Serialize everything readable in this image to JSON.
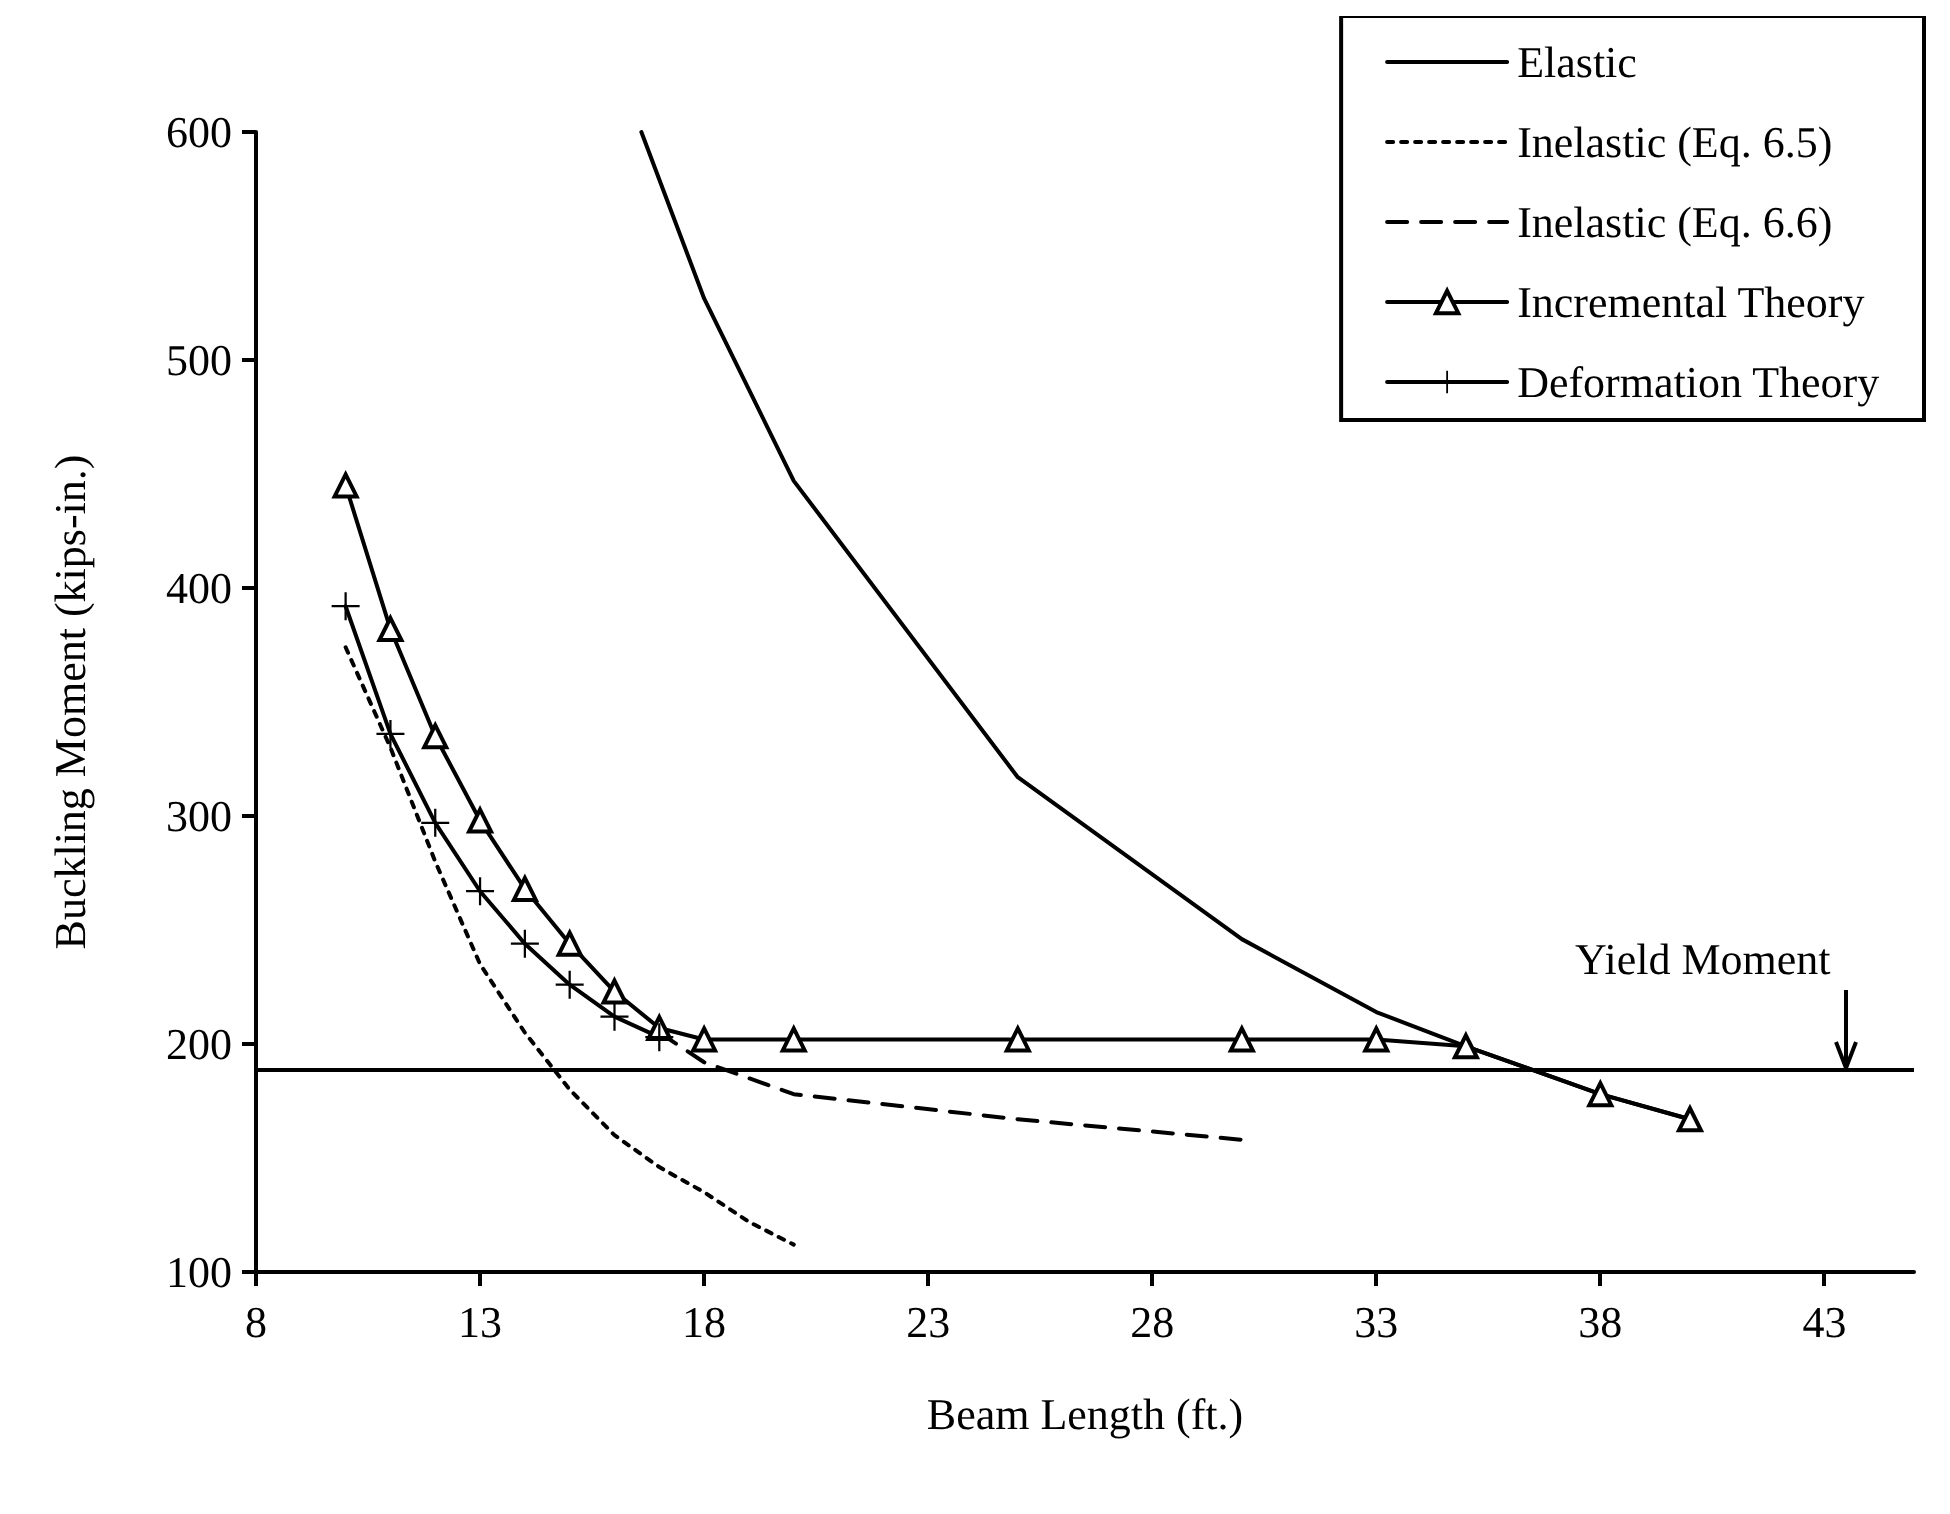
{
  "chart_data": {
    "type": "line",
    "xlabel": "Beam Length (ft.)",
    "ylabel": "Buckling Moment (kips-in.)",
    "xlim": [
      8,
      45
    ],
    "xticks": [
      8,
      13,
      18,
      23,
      28,
      33,
      38,
      43
    ],
    "ylim": [
      100,
      600
    ],
    "yticks": [
      100,
      200,
      300,
      400,
      500,
      600
    ],
    "grid": false,
    "legend": "top right",
    "series": [
      {
        "name": "Elastic",
        "color": "#000000",
        "line_style": "solid",
        "marker": "none",
        "x": [
          16.6,
          18,
          20,
          25,
          30,
          33,
          35,
          38,
          40
        ],
        "values": [
          600,
          527,
          447,
          317,
          246,
          214,
          199,
          178,
          167
        ]
      },
      {
        "name": "Inelastic (Eq. 6.5)",
        "color": "#000000",
        "line_style": "dotted",
        "marker": "none",
        "x": [
          10,
          11,
          12,
          13,
          14,
          15,
          16,
          17,
          18,
          19,
          20
        ],
        "values": [
          374,
          330,
          280,
          235,
          205,
          180,
          160,
          146,
          135,
          122,
          112
        ]
      },
      {
        "name": "Inelastic (Eq. 6.6)",
        "color": "#000000",
        "line_style": "dashed",
        "marker": "none",
        "x": [
          17,
          18,
          20,
          25,
          30
        ],
        "values": [
          205,
          192,
          178,
          167,
          158
        ]
      },
      {
        "name": "Incremental Theory",
        "color": "#000000",
        "line_style": "solid",
        "marker": "triangle",
        "x": [
          10,
          11,
          12,
          13,
          14,
          15,
          16,
          17,
          18,
          20,
          25,
          30,
          33,
          35,
          38,
          40
        ],
        "values": [
          445,
          382,
          335,
          298,
          268,
          244,
          223,
          207,
          202,
          202,
          202,
          202,
          202,
          199,
          178,
          167
        ]
      },
      {
        "name": "Deformation Theory",
        "color": "#000000",
        "line_style": "solid",
        "marker": "cross",
        "x": [
          10,
          11,
          12,
          13,
          14,
          15,
          16,
          17
        ],
        "values": [
          392,
          336,
          297,
          267,
          244,
          226,
          212,
          203
        ]
      }
    ],
    "ref_lines": [
      {
        "axis": "y",
        "value": 189,
        "color": "#000000",
        "line_style": "solid"
      }
    ],
    "annotations": [
      {
        "text": "Yield Moment",
        "x": 43.5,
        "y": 189
      }
    ]
  }
}
